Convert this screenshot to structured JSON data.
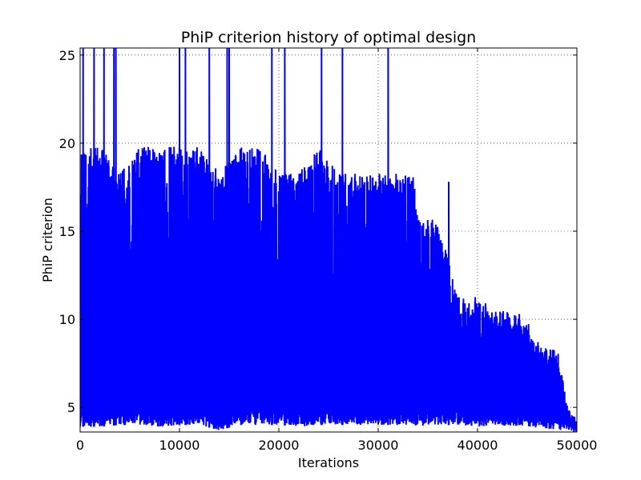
{
  "chart_data": {
    "type": "line",
    "title": "PhiP criterion history of optimal design",
    "xlabel": "Iterations",
    "ylabel": "PhiP criterion",
    "xlim": [
      0,
      50000
    ],
    "ylim": [
      3.6,
      25.4
    ],
    "xticks": [
      0,
      10000,
      20000,
      30000,
      40000,
      50000
    ],
    "xtick_labels": [
      "0",
      "10000",
      "20000",
      "30000",
      "40000",
      "50000"
    ],
    "yticks": [
      5,
      10,
      15,
      20,
      25
    ],
    "ytick_labels": [
      "5",
      "10",
      "15",
      "20",
      "25"
    ],
    "grid": true,
    "series": [
      {
        "name": "",
        "color": "#0000ff",
        "envelope_x": [
          0,
          2000,
          4000,
          6000,
          8000,
          10000,
          12000,
          14000,
          16000,
          18000,
          20000,
          22000,
          24000,
          26000,
          28000,
          30000,
          32000,
          33500,
          34000,
          36000,
          38000,
          40000,
          42000,
          44000,
          45000,
          46000,
          47000,
          48000,
          49000,
          50000
        ],
        "envelope_min": [
          3.9,
          3.9,
          4.0,
          4.0,
          3.9,
          4.0,
          4.0,
          3.7,
          4.0,
          4.0,
          4.0,
          3.9,
          4.0,
          4.0,
          4.0,
          4.0,
          4.0,
          4.0,
          3.9,
          4.0,
          4.0,
          3.9,
          4.0,
          3.9,
          3.9,
          3.8,
          3.8,
          3.7,
          3.7,
          3.6
        ],
        "envelope_max": [
          19.8,
          19.8,
          18.3,
          19.8,
          19.8,
          19.8,
          19.8,
          18.3,
          19.8,
          19.8,
          18.3,
          18.3,
          19.8,
          18.3,
          18.3,
          18.3,
          18.3,
          18.3,
          15.7,
          15.7,
          11.3,
          11.3,
          10.5,
          10.5,
          10.1,
          8.8,
          8.4,
          8.4,
          5.2,
          4.2
        ],
        "spikes": [
          {
            "x": 300,
            "y": 25.4
          },
          {
            "x": 1400,
            "y": 25.4
          },
          {
            "x": 2400,
            "y": 25.4
          },
          {
            "x": 3400,
            "y": 25.4
          },
          {
            "x": 3600,
            "y": 25.4
          },
          {
            "x": 10000,
            "y": 25.4
          },
          {
            "x": 10600,
            "y": 25.4
          },
          {
            "x": 13000,
            "y": 25.4
          },
          {
            "x": 14800,
            "y": 25.4
          },
          {
            "x": 15000,
            "y": 25.4
          },
          {
            "x": 19300,
            "y": 25.4
          },
          {
            "x": 20600,
            "y": 25.4
          },
          {
            "x": 24300,
            "y": 25.4
          },
          {
            "x": 26400,
            "y": 25.4
          },
          {
            "x": 31000,
            "y": 25.4
          },
          {
            "x": 37100,
            "y": 17.8
          }
        ]
      }
    ]
  }
}
